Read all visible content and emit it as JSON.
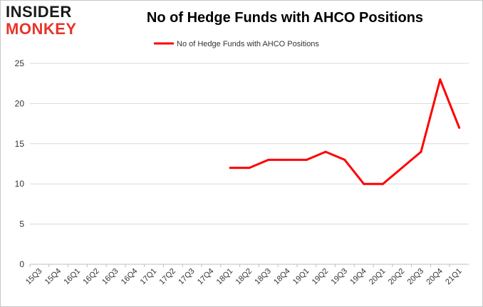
{
  "logo": {
    "line1": "INSIDER",
    "line2": "MONKEY"
  },
  "chart_data": {
    "type": "line",
    "title": "No of Hedge Funds with AHCO Positions",
    "xlabel": "",
    "ylabel": "",
    "categories": [
      "15Q3",
      "15Q4",
      "16Q1",
      "16Q2",
      "16Q3",
      "16Q4",
      "17Q1",
      "17Q2",
      "17Q3",
      "17Q4",
      "18Q1",
      "18Q2",
      "18Q3",
      "18Q4",
      "19Q1",
      "19Q2",
      "19Q3",
      "19Q4",
      "20Q1",
      "20Q2",
      "20Q3",
      "20Q4",
      "21Q1"
    ],
    "series": [
      {
        "name": "No of Hedge Funds with AHCO Positions",
        "color": "#ff0000",
        "values": [
          null,
          null,
          null,
          null,
          null,
          null,
          null,
          null,
          null,
          null,
          12,
          12,
          13,
          13,
          13,
          14,
          13,
          10,
          10,
          12,
          14,
          23,
          17
        ]
      }
    ],
    "ylim": [
      0,
      25
    ],
    "yticks": [
      0,
      5,
      10,
      15,
      20,
      25
    ],
    "grid": "horizontal",
    "legend_position": "top-center"
  }
}
